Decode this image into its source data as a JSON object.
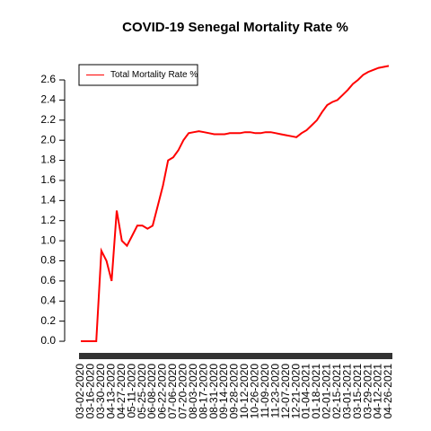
{
  "chart_data": {
    "type": "line",
    "title": "COVID-19 Senegal Mortality Rate %",
    "categories": [
      "03-02-2020",
      null,
      "03-16-2020",
      null,
      "03-30-2020",
      null,
      "04-13-2020",
      null,
      "04-27-2020",
      null,
      "05-11-2020",
      null,
      "05-25-2020",
      null,
      "06-08-2020",
      null,
      "06-22-2020",
      null,
      "07-06-2020",
      null,
      "07-20-2020",
      null,
      "08-03-2020",
      null,
      "08-17-2020",
      null,
      "08-31-2020",
      null,
      "09-14-2020",
      null,
      "09-28-2020",
      null,
      "10-12-2020",
      null,
      "10-26-2020",
      null,
      "11-09-2020",
      null,
      "11-23-2020",
      null,
      "12-07-2020",
      null,
      "12-21-2020",
      null,
      "01-04-2021",
      null,
      "01-18-2021",
      null,
      "02-01-2021",
      null,
      "02-15-2021",
      null,
      "03-01-2021",
      null,
      "03-15-2021",
      null,
      "03-29-2021",
      null,
      "04-12-2021",
      null,
      "04-26-2021"
    ],
    "series": [
      {
        "name": "Total Mortality Rate %",
        "color": "#ff0000",
        "values": [
          0,
          0,
          0,
          0,
          0.9,
          0.8,
          0.6,
          1.3,
          1.0,
          0.95,
          1.05,
          1.15,
          1.15,
          1.12,
          1.15,
          1.35,
          1.55,
          1.8,
          1.83,
          1.9,
          2.0,
          2.07,
          2.08,
          2.09,
          2.08,
          2.07,
          2.06,
          2.06,
          2.06,
          2.07,
          2.07,
          2.07,
          2.08,
          2.08,
          2.07,
          2.07,
          2.08,
          2.08,
          2.07,
          2.06,
          2.05,
          2.04,
          2.03,
          2.07,
          2.1,
          2.15,
          2.2,
          2.28,
          2.35,
          2.38,
          2.4,
          2.45,
          2.5,
          2.56,
          2.6,
          2.65,
          2.68,
          2.7,
          2.72,
          2.73,
          2.74
        ]
      }
    ],
    "ylim": [
      -0.08,
      2.82
    ],
    "yticks": [
      {
        "value": 0,
        "label": "0.0"
      },
      {
        "value": 0.2,
        "label": "0.2"
      },
      {
        "value": 0.4,
        "label": "0.4"
      },
      {
        "value": 0.6,
        "label": "0.6"
      },
      {
        "value": 0.8,
        "label": "0.8"
      },
      {
        "value": 1,
        "label": "1.0"
      },
      {
        "value": 1.2,
        "label": "1.2"
      },
      {
        "value": 1.4,
        "label": "1.4"
      },
      {
        "value": 1.6,
        "label": "1.6"
      },
      {
        "value": 1.8,
        "label": "1.8"
      },
      {
        "value": 2,
        "label": "2.0"
      },
      {
        "value": 2.2,
        "label": "2.2"
      },
      {
        "value": 2.4,
        "label": "2.4"
      },
      {
        "value": 2.6,
        "label": "2.6"
      }
    ],
    "legend": "topleft"
  }
}
